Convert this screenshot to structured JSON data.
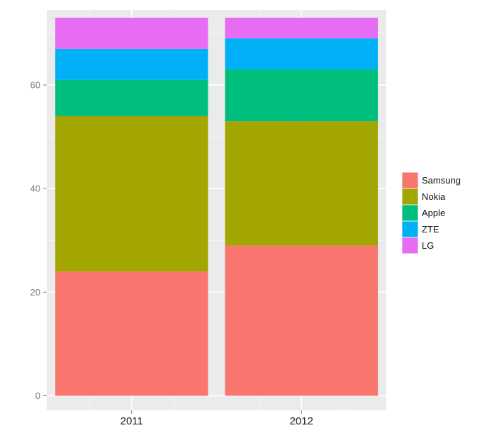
{
  "chart_data": {
    "type": "bar",
    "stacked": true,
    "title": "",
    "xlabel": "",
    "ylabel": "",
    "categories": [
      "2011",
      "2012"
    ],
    "ylim": [
      -2.8,
      74.5
    ],
    "yticks": [
      0,
      20,
      40,
      60
    ],
    "grid": true,
    "legend": "right",
    "series": [
      {
        "name": "Samsung",
        "color": "#F8766D",
        "values": [
          24,
          29
        ]
      },
      {
        "name": "Nokia",
        "color": "#A3A500",
        "values": [
          30,
          24
        ]
      },
      {
        "name": "Apple",
        "color": "#00BF7D",
        "values": [
          7,
          10
        ]
      },
      {
        "name": "ZTE",
        "color": "#00B0F6",
        "values": [
          6,
          6
        ]
      },
      {
        "name": "LG",
        "color": "#E76BF3",
        "values": [
          6,
          4
        ]
      }
    ]
  }
}
